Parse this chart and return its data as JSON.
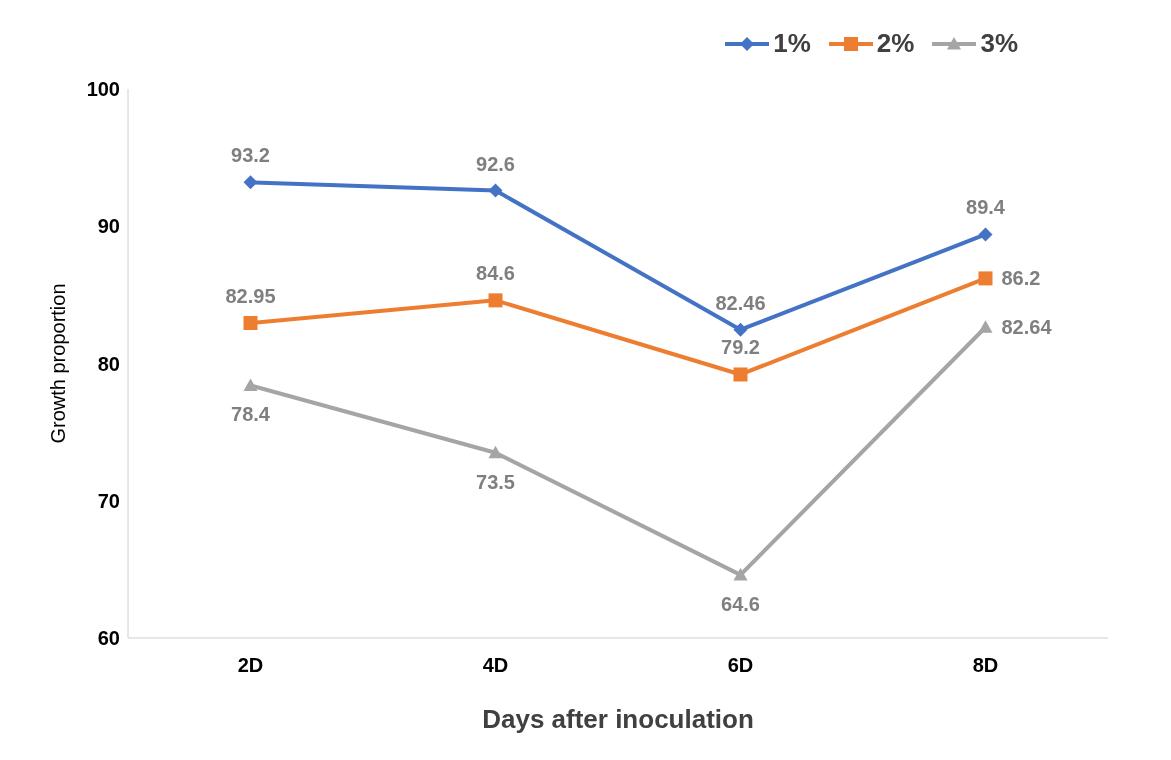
{
  "chart_data": {
    "type": "line",
    "xlabel": "Days after inoculation",
    "ylabel": "Growth proportion",
    "categories": [
      "2D",
      "4D",
      "6D",
      "8D"
    ],
    "series": [
      {
        "name": "1%",
        "color": "#4472c4",
        "marker": "diamond",
        "values": [
          93.2,
          92.6,
          82.46,
          89.4
        ]
      },
      {
        "name": "2%",
        "color": "#ed7d31",
        "marker": "square",
        "values": [
          82.95,
          84.6,
          79.2,
          86.2
        ]
      },
      {
        "name": "3%",
        "color": "#a5a5a5",
        "marker": "triangle",
        "values": [
          78.4,
          73.5,
          64.6,
          82.64
        ]
      }
    ],
    "ylim": [
      60,
      100
    ],
    "yticks": [
      60,
      70,
      80,
      90,
      100
    ],
    "grid": false,
    "legend": "top right",
    "data_labels": true
  }
}
